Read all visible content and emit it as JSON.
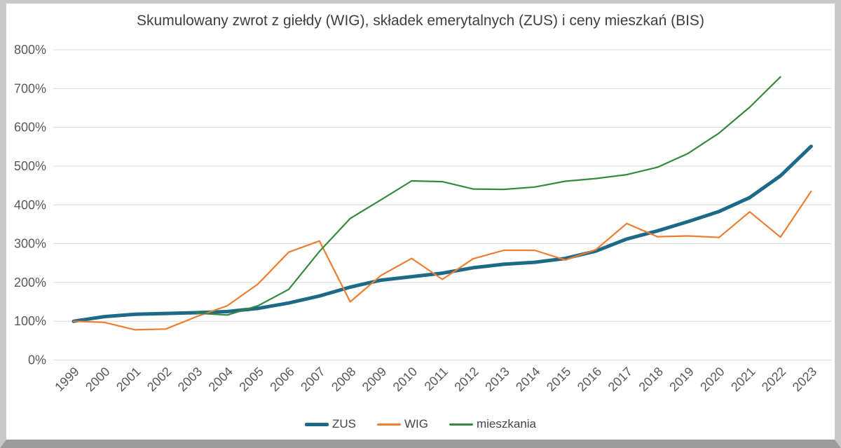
{
  "chart_data": {
    "type": "line",
    "title": "Skumulowany zwrot z giełdy (WIG), składek emerytalnych (ZUS) i ceny mieszkań (BIS)",
    "x": [
      1999,
      2000,
      2001,
      2002,
      2003,
      2004,
      2005,
      2006,
      2007,
      2008,
      2009,
      2010,
      2011,
      2012,
      2013,
      2014,
      2015,
      2016,
      2017,
      2018,
      2019,
      2020,
      2021,
      2022,
      2023
    ],
    "xlabel": "",
    "ylabel": "",
    "ylim": [
      0,
      800
    ],
    "y_tick_step": 100,
    "y_tick_suffix": "%",
    "grid": true,
    "legend_position": "bottom",
    "colors": {
      "grid": "#d9d9d9",
      "tick_text": "#595959",
      "title_text": "#404040"
    },
    "series": [
      {
        "name": "ZUS",
        "color": "#1d6a88",
        "line_width": 5,
        "values": [
          100,
          112,
          118,
          120,
          122,
          125,
          133,
          147,
          165,
          188,
          206,
          215,
          224,
          238,
          247,
          252,
          262,
          281,
          312,
          333,
          357,
          383,
          419,
          475,
          551
        ]
      },
      {
        "name": "WIG",
        "color": "#ed7d31",
        "line_width": 2.2,
        "values": [
          100,
          97,
          78,
          80,
          112,
          140,
          196,
          278,
          307,
          150,
          218,
          262,
          208,
          261,
          283,
          283,
          258,
          285,
          352,
          318,
          320,
          316,
          382,
          317,
          435
        ]
      },
      {
        "name": "mieszkania",
        "color": "#35893e",
        "line_width": 2.2,
        "values": [
          null,
          null,
          null,
          null,
          121,
          116,
          140,
          182,
          280,
          365,
          413,
          462,
          460,
          441,
          440,
          446,
          461,
          468,
          478,
          497,
          533,
          585,
          652,
          730,
          null
        ]
      }
    ]
  }
}
